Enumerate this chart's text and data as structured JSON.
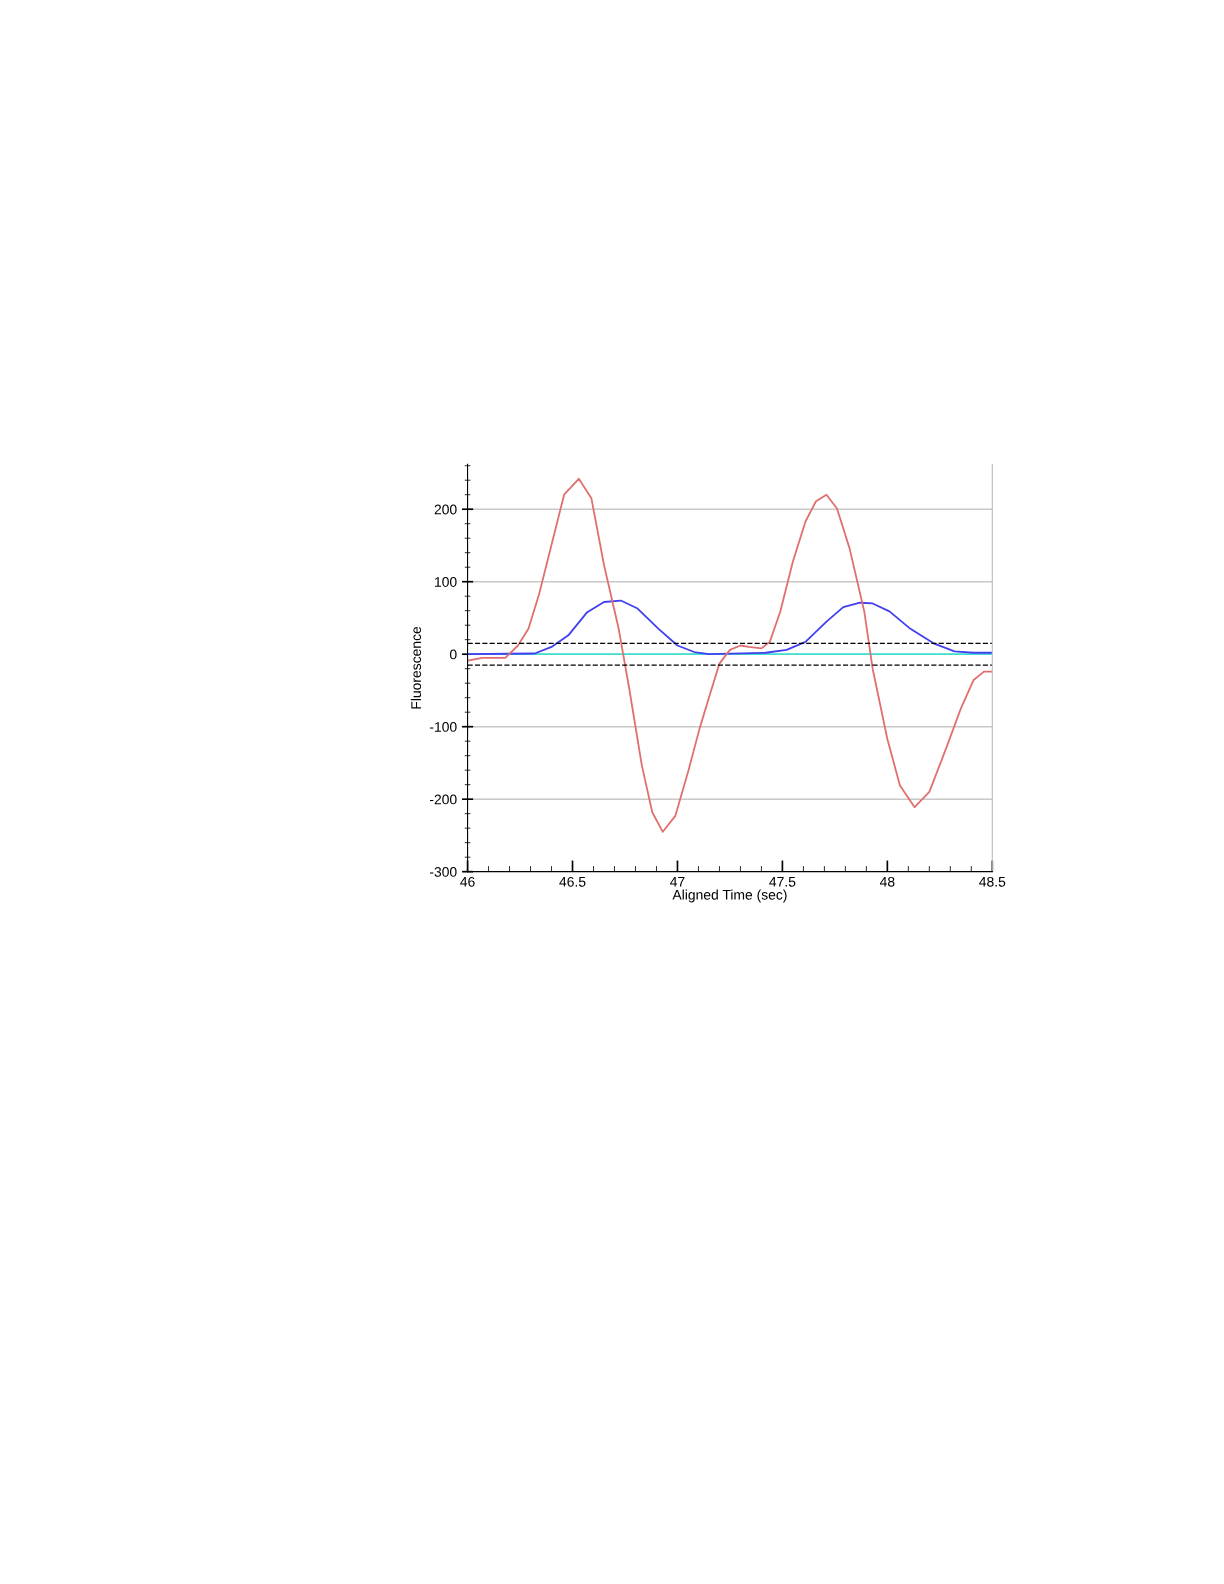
{
  "chart_data": {
    "type": "line",
    "xlabel": "Aligned Time (sec)",
    "ylabel": "Fluorescence",
    "xlim": [
      46,
      48.5
    ],
    "xticks": [
      46,
      46.5,
      47,
      47.5,
      48,
      48.5
    ],
    "ylim": [
      -300,
      262
    ],
    "yticks": [
      -300,
      -200,
      -100,
      0,
      100,
      200
    ],
    "grid": "y",
    "legend": false,
    "marker": "none",
    "line_style": "solid",
    "ref_lines": [
      {
        "axis": "y",
        "value": 15,
        "color": "#000000",
        "line_style": "dashed"
      },
      {
        "axis": "y",
        "value": -15,
        "color": "#000000",
        "line_style": "dashed"
      }
    ],
    "series": [
      {
        "color": "#40e0d0",
        "x": [
          46,
          48.5
        ],
        "values": [
          0,
          0
        ]
      },
      {
        "color": "#4040f0",
        "x": [
          46.0,
          46.32,
          46.4,
          46.48,
          46.57,
          46.65,
          46.73,
          46.81,
          46.91,
          47.0,
          47.08,
          47.15,
          47.42,
          47.52,
          47.61,
          47.71,
          47.79,
          47.87,
          47.93,
          48.01,
          48.11,
          48.22,
          48.32,
          48.41,
          48.5
        ],
        "values": [
          0,
          1,
          10,
          26,
          58,
          72,
          74,
          63,
          35,
          12,
          3,
          0,
          2,
          6,
          17,
          45,
          65,
          71,
          70,
          59,
          35,
          15,
          4,
          2,
          2
        ]
      },
      {
        "color": "#e07070",
        "x": [
          46.0,
          46.07,
          46.18,
          46.24,
          46.29,
          46.34,
          46.4,
          46.46,
          46.53,
          46.59,
          46.65,
          46.72,
          46.77,
          46.83,
          46.88,
          46.93,
          46.99,
          47.05,
          47.105,
          47.153,
          47.2,
          47.25,
          47.3,
          47.34,
          47.4,
          47.44,
          47.49,
          47.55,
          47.61,
          47.66,
          47.71,
          47.76,
          47.82,
          47.89,
          47.93,
          48.0,
          48.06,
          48.13,
          48.2,
          48.28,
          48.35,
          48.41,
          48.46,
          48.5
        ],
        "values": [
          -9,
          -5,
          -5,
          12,
          35,
          82,
          151,
          220,
          242,
          215,
          123,
          35,
          -47,
          -153,
          -218,
          -245,
          -223,
          -163,
          -103,
          -57,
          -13,
          6,
          12,
          10,
          8,
          17,
          59,
          128,
          183,
          211,
          220,
          201,
          146,
          59,
          -20,
          -117,
          -181,
          -211,
          -190,
          -130,
          -75,
          -36,
          -24,
          -24
        ]
      }
    ]
  }
}
